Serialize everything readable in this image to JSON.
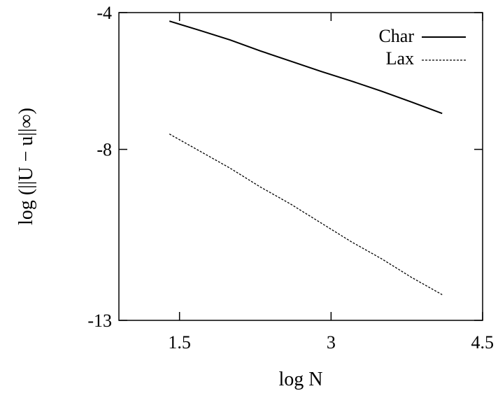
{
  "chart_data": {
    "type": "line",
    "title": "",
    "xlabel": "log N",
    "ylabel": "log (||U − u||∞)",
    "xlim": [
      0.9,
      4.5
    ],
    "ylim": [
      -13,
      -4
    ],
    "xticks": [
      1.5,
      3,
      4.5
    ],
    "yticks": [
      -4,
      -8,
      -13
    ],
    "xtick_labels": [
      "1.5",
      "3",
      "4.5"
    ],
    "ytick_labels": [
      "-4",
      "-8",
      "-13"
    ],
    "grid": false,
    "legend_position": "top-right",
    "series": [
      {
        "name": "Char",
        "style": "solid",
        "color": "#000000",
        "x": [
          1.4,
          1.7,
          2.0,
          2.3,
          2.6,
          2.9,
          3.2,
          3.5,
          3.8,
          4.1
        ],
        "y": [
          -4.25,
          -4.52,
          -4.8,
          -5.12,
          -5.42,
          -5.72,
          -6.0,
          -6.3,
          -6.62,
          -6.95
        ]
      },
      {
        "name": "Lax",
        "style": "dashed",
        "color": "#000000",
        "x": [
          1.4,
          1.7,
          2.0,
          2.3,
          2.6,
          2.9,
          3.2,
          3.5,
          3.8,
          4.1
        ],
        "y": [
          -7.55,
          -8.05,
          -8.55,
          -9.1,
          -9.6,
          -10.15,
          -10.7,
          -11.2,
          -11.75,
          -12.25
        ]
      }
    ]
  }
}
